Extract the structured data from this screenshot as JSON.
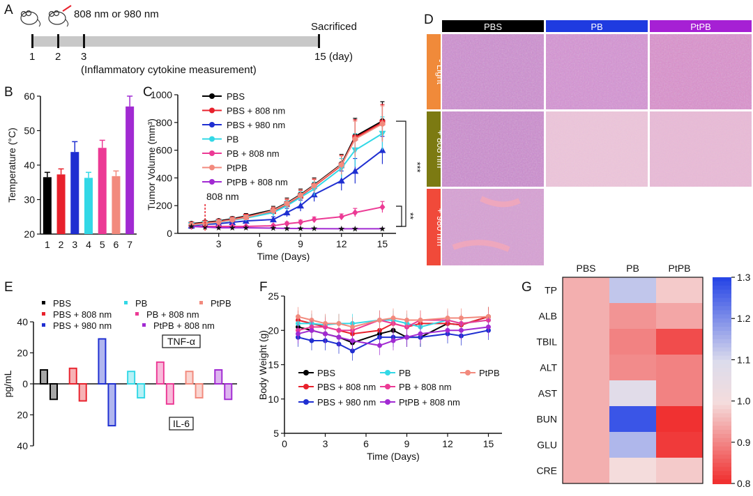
{
  "panel_letters": [
    "A",
    "B",
    "C",
    "D",
    "E",
    "F",
    "G"
  ],
  "panelA": {
    "laser_label": "808 nm or 980 nm",
    "sacrificed_label": "Sacrificed",
    "ticks": [
      "1",
      "2",
      "3",
      "15 (day)"
    ],
    "note": "(Inflammatory cytokine measurement)"
  },
  "colors": {
    "PBS": "#000000",
    "PBS808": "#e8212c",
    "PBS980": "#1f2fd1",
    "PB": "#32d8e6",
    "PB808": "#ec3a95",
    "PtPB": "#f28a7d",
    "PtPB808": "#a12ad2"
  },
  "panelD": {
    "col_headers": [
      "PBS",
      "PB",
      "PtPB"
    ],
    "row_labels": [
      "- Light",
      "+ 808 nm",
      "+ 980 nm"
    ],
    "header_colors": [
      "#000000",
      "#1f3be0",
      "#a620d4"
    ],
    "row_colors": [
      "#f08a3a",
      "#7c7a12",
      "#f04a3a"
    ]
  },
  "panelG_text": {
    "cols": [
      "PBS",
      "PB",
      "PtPB"
    ],
    "rows": [
      "TP",
      "ALB",
      "TBIL",
      "ALT",
      "AST",
      "BUN",
      "GLU",
      "CRE"
    ],
    "cbar_ticks": [
      "1.3",
      "1.2",
      "1.1",
      "1.0",
      "0.9",
      "0.8"
    ]
  },
  "chart_data": [
    {
      "id": "B",
      "type": "bar",
      "ylabel": "Temperature (°C)",
      "ylim": [
        20,
        60
      ],
      "yticks": [
        20,
        30,
        40,
        50,
        60
      ],
      "categories": [
        "1",
        "2",
        "3",
        "4",
        "5",
        "6",
        "7"
      ],
      "values": [
        36.5,
        37.3,
        43.8,
        36.3,
        45.0,
        36.8,
        57.0
      ],
      "errors": [
        1.4,
        1.6,
        3.0,
        1.6,
        2.2,
        1.5,
        3.0
      ],
      "colors": [
        "#000000",
        "#e8212c",
        "#1f2fd1",
        "#32d8e6",
        "#ec3a95",
        "#f28a7d",
        "#a12ad2"
      ]
    },
    {
      "id": "C",
      "type": "line",
      "xlabel": "Time (Days)",
      "ylabel": "Tumor Volume (mm³)",
      "xlim": [
        0,
        16
      ],
      "xticks": [
        3,
        6,
        9,
        12,
        15
      ],
      "ylim": [
        0,
        1000
      ],
      "yticks": [
        0,
        200,
        400,
        600,
        800,
        1000
      ],
      "x": [
        1,
        2,
        3,
        4,
        5,
        7,
        8,
        9,
        10,
        12,
        13,
        15
      ],
      "annotation": "808 nm",
      "sig_labels": [
        "***",
        "**"
      ],
      "series": [
        {
          "name": "PBS",
          "values": [
            70,
            80,
            90,
            105,
            125,
            170,
            220,
            280,
            350,
            500,
            700,
            810
          ],
          "error": [
            8,
            10,
            12,
            15,
            18,
            25,
            35,
            40,
            50,
            70,
            130,
            140
          ]
        },
        {
          "name": "PBS + 808 nm",
          "values": [
            65,
            75,
            85,
            100,
            120,
            160,
            210,
            270,
            340,
            490,
            690,
            800
          ],
          "error": [
            8,
            10,
            12,
            15,
            18,
            25,
            35,
            40,
            50,
            70,
            130,
            130
          ]
        },
        {
          "name": "PBS + 980 nm",
          "values": [
            55,
            65,
            70,
            80,
            90,
            100,
            150,
            200,
            280,
            380,
            450,
            600
          ],
          "error": [
            8,
            8,
            10,
            12,
            15,
            20,
            30,
            40,
            50,
            70,
            90,
            100
          ]
        },
        {
          "name": "PB",
          "values": [
            60,
            70,
            80,
            95,
            110,
            150,
            200,
            260,
            320,
            470,
            600,
            720
          ],
          "error": [
            8,
            10,
            12,
            15,
            18,
            25,
            35,
            40,
            50,
            70,
            120,
            120
          ]
        },
        {
          "name": "PB + 808 nm",
          "values": [
            50,
            50,
            50,
            50,
            50,
            55,
            70,
            80,
            100,
            120,
            150,
            190
          ],
          "error": [
            6,
            6,
            6,
            6,
            8,
            10,
            12,
            15,
            18,
            20,
            30,
            40
          ]
        },
        {
          "name": "PtPB",
          "values": [
            62,
            72,
            82,
            98,
            115,
            165,
            215,
            275,
            345,
            495,
            680,
            790
          ],
          "error": [
            8,
            10,
            12,
            15,
            18,
            25,
            35,
            40,
            50,
            70,
            130,
            130
          ]
        },
        {
          "name": "PtPB + 808 nm",
          "values": [
            50,
            45,
            40,
            40,
            40,
            38,
            36,
            35,
            34,
            33,
            33,
            33
          ],
          "error": [
            5,
            5,
            5,
            5,
            5,
            5,
            5,
            5,
            5,
            5,
            5,
            5
          ]
        }
      ]
    },
    {
      "id": "E",
      "type": "bar",
      "ylabel": "pg/mL",
      "ylim": [
        -40,
        40
      ],
      "ytick_labels": [
        "40",
        "20",
        "0",
        "20",
        "40"
      ],
      "series_names": [
        "PBS",
        "PBS + 808 nm",
        "PBS + 980 nm",
        "PB",
        "PB + 808 nm",
        "PtPB",
        "PtPB + 808 nm"
      ],
      "tnf": [
        9,
        10,
        29,
        8,
        14,
        8,
        9
      ],
      "il6": [
        10,
        11,
        27,
        9,
        13,
        9,
        10
      ],
      "tnf_label": "TNF-α",
      "il6_label": "IL-6"
    },
    {
      "id": "F",
      "type": "line",
      "xlabel": "Time (Days)",
      "ylabel": "Body Weight (g)",
      "xlim": [
        0,
        16
      ],
      "xticks": [
        0,
        3,
        6,
        9,
        12,
        15
      ],
      "ylim": [
        5,
        25
      ],
      "yticks": [
        5,
        10,
        15,
        20,
        25
      ],
      "x": [
        1,
        2,
        3,
        4,
        5,
        7,
        8,
        9,
        10,
        12,
        13,
        15
      ],
      "series": [
        {
          "name": "PBS",
          "values": [
            20.5,
            20.0,
            19.5,
            19.0,
            18.2,
            19.5,
            20.0,
            19.0,
            19.0,
            21.0,
            20.8,
            22.0
          ]
        },
        {
          "name": "PBS + 808 nm",
          "values": [
            21.5,
            21.0,
            20.5,
            20.0,
            19.5,
            20.0,
            21.0,
            20.5,
            21.0,
            21.0,
            20.8,
            22.0
          ]
        },
        {
          "name": "PBS + 980 nm",
          "values": [
            19.0,
            18.5,
            18.5,
            18.0,
            17.0,
            19.0,
            19.0,
            19.0,
            19.0,
            19.5,
            19.2,
            20.0
          ]
        },
        {
          "name": "PB",
          "values": [
            21.0,
            21.0,
            20.8,
            21.0,
            21.0,
            21.5,
            21.5,
            21.0,
            20.5,
            21.5,
            21.0,
            21.5
          ]
        },
        {
          "name": "PB + 808 nm",
          "values": [
            20.0,
            20.5,
            20.5,
            20.0,
            20.0,
            21.5,
            21.0,
            20.5,
            21.5,
            21.5,
            21.0,
            21.5
          ]
        },
        {
          "name": "PtPB",
          "values": [
            22.0,
            21.5,
            21.0,
            21.0,
            20.5,
            21.5,
            21.8,
            21.5,
            21.5,
            21.8,
            21.8,
            22.0
          ]
        },
        {
          "name": "PtPB + 808 nm",
          "values": [
            19.5,
            20.0,
            19.5,
            19.0,
            18.5,
            17.8,
            18.5,
            19.0,
            19.5,
            20.0,
            20.0,
            20.5
          ]
        }
      ]
    },
    {
      "id": "G",
      "type": "heatmap",
      "cols": [
        "PBS",
        "PB",
        "PtPB"
      ],
      "rows": [
        "TP",
        "ALB",
        "TBIL",
        "ALT",
        "AST",
        "BUN",
        "GLU",
        "CRE"
      ],
      "values": [
        [
          0.95,
          1.13,
          0.98
        ],
        [
          0.95,
          0.92,
          0.94
        ],
        [
          0.95,
          0.9,
          0.84
        ],
        [
          0.95,
          0.91,
          0.9
        ],
        [
          0.95,
          1.08,
          0.9
        ],
        [
          0.95,
          1.28,
          0.81
        ],
        [
          0.95,
          1.15,
          0.82
        ],
        [
          0.95,
          1.0,
          0.98
        ]
      ],
      "colorbar": {
        "min": 0.8,
        "max": 1.3,
        "ticks": [
          1.3,
          1.2,
          1.1,
          1.0,
          0.9,
          0.8
        ]
      }
    }
  ]
}
